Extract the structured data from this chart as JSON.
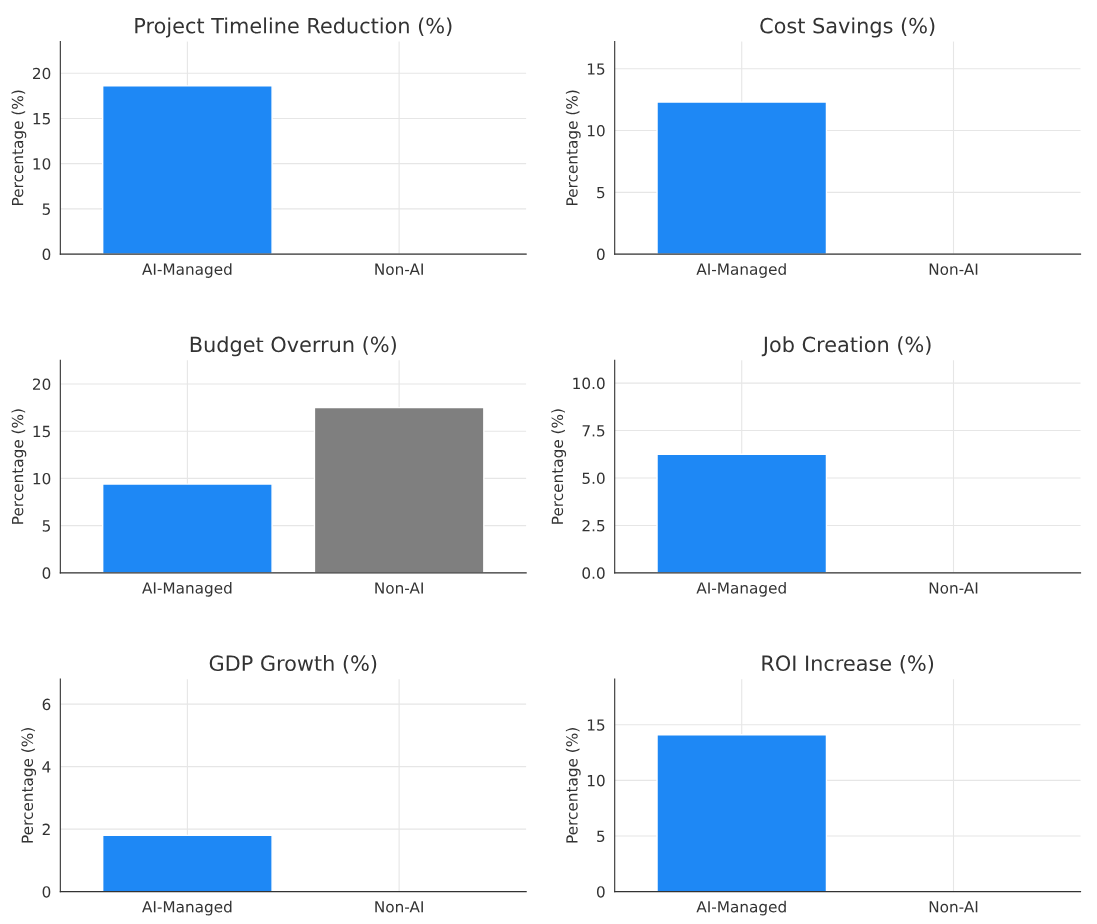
{
  "chart_data": [
    {
      "type": "bar",
      "title": "Project Timeline Reduction (%)",
      "ylabel": "Percentage (%)",
      "categories": [
        "AI-Managed",
        "Non-AI"
      ],
      "values": [
        18.6,
        0
      ],
      "colors": [
        "#1e88f5",
        null
      ],
      "ylim": [
        0,
        23.5
      ],
      "yticks": [
        0,
        5,
        10,
        15,
        20
      ],
      "grid": true
    },
    {
      "type": "bar",
      "title": "Cost Savings (%)",
      "ylabel": "Percentage (%)",
      "categories": [
        "AI-Managed",
        "Non-AI"
      ],
      "values": [
        12.3,
        0
      ],
      "colors": [
        "#1e88f5",
        null
      ],
      "ylim": [
        0,
        17.2
      ],
      "yticks": [
        0,
        5,
        10,
        15
      ],
      "grid": true
    },
    {
      "type": "bar",
      "title": "Budget Overrun (%)",
      "ylabel": "Percentage (%)",
      "categories": [
        "AI-Managed",
        "Non-AI"
      ],
      "values": [
        9.4,
        17.5
      ],
      "colors": [
        "#1e88f5",
        "#7f7f7f"
      ],
      "ylim": [
        0,
        22.5
      ],
      "yticks": [
        0,
        5,
        10,
        15,
        20
      ],
      "grid": true
    },
    {
      "type": "bar",
      "title": "Job Creation (%)",
      "ylabel": "Percentage (%)",
      "categories": [
        "AI-Managed",
        "Non-AI"
      ],
      "values": [
        6.25,
        0
      ],
      "colors": [
        "#1e88f5",
        null
      ],
      "ylim": [
        0,
        11.2
      ],
      "yticks": [
        {
          "value": 0,
          "label": "0.0"
        },
        {
          "value": 2.5,
          "label": "2.5"
        },
        {
          "value": 5,
          "label": "5.0"
        },
        {
          "value": 7.5,
          "label": "7.5"
        },
        {
          "value": 10,
          "label": "10.0"
        }
      ],
      "grid": true
    },
    {
      "type": "bar",
      "title": "GDP Growth (%)",
      "ylabel": "Percentage (%)",
      "categories": [
        "AI-Managed",
        "Non-AI"
      ],
      "values": [
        1.8,
        0
      ],
      "colors": [
        "#1e88f5",
        null
      ],
      "ylim": [
        0,
        6.8
      ],
      "yticks": [
        0,
        2,
        4,
        6
      ],
      "grid": true
    },
    {
      "type": "bar",
      "title": "ROI Increase (%)",
      "ylabel": "Percentage (%)",
      "categories": [
        "AI-Managed",
        "Non-AI"
      ],
      "values": [
        14.1,
        0
      ],
      "colors": [
        "#1e88f5",
        null
      ],
      "ylim": [
        0,
        19.1
      ],
      "yticks": [
        0,
        5,
        10,
        15
      ],
      "grid": true
    }
  ]
}
